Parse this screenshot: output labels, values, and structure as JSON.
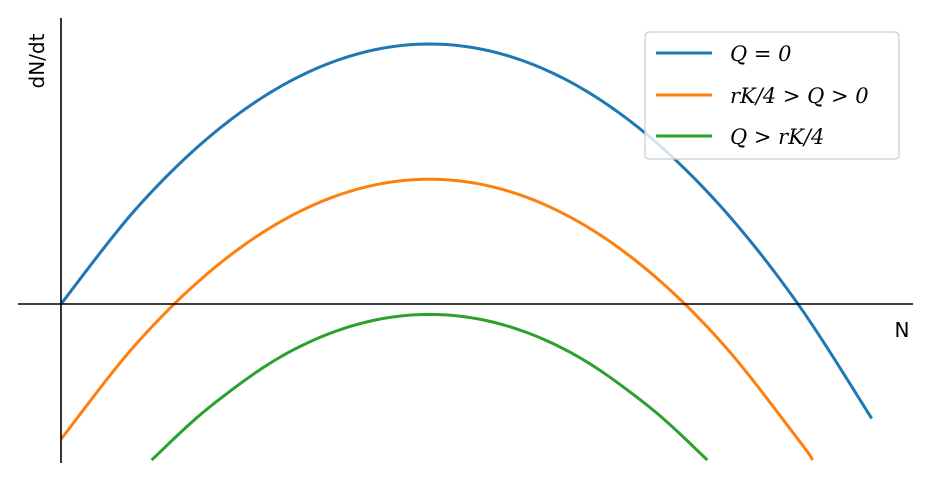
{
  "chart_data": {
    "type": "line",
    "title": "",
    "xlabel": "N",
    "ylabel": "dN/dt",
    "xlim": [
      0,
      1.12
    ],
    "ylim": [
      -0.6,
      1.12
    ],
    "grid": false,
    "legend_position": "top-right",
    "x_axis_at_y": 0,
    "y_axis_at_x": 0,
    "series": [
      {
        "name": "Q = 0",
        "color": "#1f77b4",
        "points": [
          [
            0,
            0
          ],
          [
            0.1,
            0.36
          ],
          [
            0.2,
            0.64
          ],
          [
            0.3,
            0.84
          ],
          [
            0.4,
            0.96
          ],
          [
            0.5,
            1.0
          ],
          [
            0.6,
            0.96
          ],
          [
            0.7,
            0.84
          ],
          [
            0.8,
            0.64
          ],
          [
            0.9,
            0.36
          ],
          [
            1.0,
            0.0
          ],
          [
            1.1,
            -0.44
          ]
        ]
      },
      {
        "name": "rK/4 > Q > 0",
        "color": "#ff7f0e",
        "points": [
          [
            0,
            -0.52
          ],
          [
            0.1,
            -0.16
          ],
          [
            0.2,
            0.12
          ],
          [
            0.3,
            0.32
          ],
          [
            0.4,
            0.44
          ],
          [
            0.5,
            0.48
          ],
          [
            0.6,
            0.44
          ],
          [
            0.7,
            0.32
          ],
          [
            0.8,
            0.12
          ],
          [
            0.9,
            -0.16
          ],
          [
            1.0,
            -0.52
          ],
          [
            1.02,
            -0.6
          ]
        ]
      },
      {
        "name": "Q > rK/4",
        "color": "#2ca02c",
        "points": [
          [
            0.123,
            -0.6
          ],
          [
            0.2,
            -0.4
          ],
          [
            0.3,
            -0.2
          ],
          [
            0.4,
            -0.08
          ],
          [
            0.5,
            -0.04
          ],
          [
            0.6,
            -0.08
          ],
          [
            0.7,
            -0.2
          ],
          [
            0.8,
            -0.4
          ],
          [
            0.877,
            -0.6
          ]
        ]
      }
    ]
  }
}
